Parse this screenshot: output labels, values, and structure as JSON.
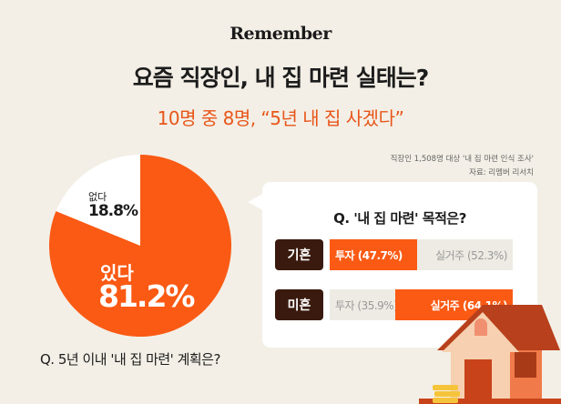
{
  "logo": "Remember",
  "title": "요즘 직장인, 내 집 마련 실태는?",
  "subtitle": "10명 중 8명, “5년 내 집 사겠다”",
  "source": {
    "line1": "직장인 1,508명 대상 '내 집 마련 인식 조사'",
    "line2": "자료: 리멤버 리서치"
  },
  "colors": {
    "accent": "#fa5a14",
    "dark": "#3a1a0e",
    "background": "#f3efe6"
  },
  "chart_data": [
    {
      "type": "pie",
      "title": "Q. 5년 이내 '내 집 마련' 계획은?",
      "slices": [
        {
          "label": "있다",
          "value": 81.2,
          "display": "81.2%",
          "color": "#fa5a14"
        },
        {
          "label": "없다",
          "value": 18.8,
          "display": "18.8%",
          "color": "#ffffff"
        }
      ]
    },
    {
      "type": "bar",
      "title": "Q. '내 집 마련' 목적은?",
      "stacked": true,
      "categories": [
        "기혼",
        "미혼"
      ],
      "series": [
        {
          "name": "투자",
          "values": [
            47.7,
            35.9
          ]
        },
        {
          "name": "실거주",
          "values": [
            52.3,
            64.1
          ]
        }
      ],
      "labels": [
        [
          "투자 (47.7%)",
          "실거주 (52.3%)"
        ],
        [
          "투자 (35.9%)",
          "실거주 (64.1%)"
        ]
      ],
      "highlight": [
        "투자",
        "실거주"
      ]
    }
  ]
}
